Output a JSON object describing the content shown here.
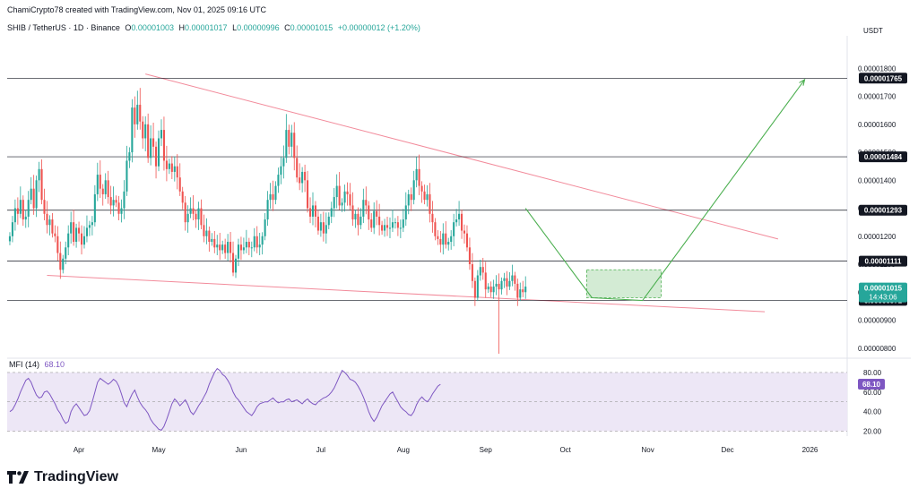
{
  "header": {
    "publisher": "ChamiCrypto78 created with TradingView.com, Nov 01, 2025 09:16 UTC",
    "symbol": "SHIB / TetherUS · 1D · Binance",
    "o_label": "O",
    "o": "0.00001003",
    "h_label": "H",
    "h": "0.00001017",
    "l_label": "L",
    "l": "0.00000996",
    "c_label": "C",
    "c": "0.00001015",
    "change": "+0.00000012 (+1.20%)",
    "currency": "USDT"
  },
  "brand": {
    "name": "TradingView",
    "logo_icon": "tradingview-logo-icon"
  },
  "colors": {
    "up": "#26a69a",
    "down": "#ef5350",
    "trendline": "#f28b9b",
    "projection": "#4caf50",
    "zone": "#a5d6a7",
    "mfi": "#7e57c2",
    "mfi_band": "#ede7f6"
  },
  "chart_data": [
    {
      "type": "candlestick",
      "title": "SHIB / TetherUS · 1D · Binance",
      "ylabel": "USDT",
      "x_start": "2025-03-05",
      "x_end": "2026-01-15",
      "ylim": [
        7.8e-06,
        1.91e-05
      ],
      "ytick_labels": [
        "0.00001800",
        "0.00001700",
        "0.00001600",
        "0.00001500",
        "0.00001400",
        "0.00001300",
        "0.00001200",
        "0.00001100",
        "0.00001000",
        "0.00000900",
        "0.00000800"
      ],
      "ytick_values": [
        1.8e-05,
        1.7e-05,
        1.6e-05,
        1.5e-05,
        1.4e-05,
        1.3e-05,
        1.2e-05,
        1.1e-05,
        1e-05,
        9e-06,
        8e-06
      ],
      "xtick_labels": [
        "Apr",
        "May",
        "Jun",
        "Jul",
        "Aug",
        "Sep",
        "Oct",
        "Nov",
        "Dec",
        "2026"
      ],
      "xtick_dates": [
        "2025-04-01",
        "2025-05-01",
        "2025-06-01",
        "2025-07-01",
        "2025-08-01",
        "2025-09-01",
        "2025-10-01",
        "2025-11-01",
        "2025-12-01",
        "2026-01-01"
      ],
      "horizontal_levels": [
        {
          "value": 1.765e-05,
          "label": "0.00001765"
        },
        {
          "value": 1.484e-05,
          "label": "0.00001484"
        },
        {
          "value": 1.293e-05,
          "label": "0.00001293"
        },
        {
          "value": 1.111e-05,
          "label": "0.00001111"
        },
        {
          "value": 9.71e-06,
          "label": "0.00000971"
        }
      ],
      "last_price": {
        "value": 1.015e-05,
        "label": "0.00001015",
        "countdown": "14:43:06"
      },
      "trendlines": [
        {
          "name": "resistance",
          "from": [
            "2025-04-26",
            1.78e-05
          ],
          "to": [
            "2025-12-20",
            1.19e-05
          ]
        },
        {
          "name": "support",
          "from": [
            "2025-03-20",
            1.06e-05
          ],
          "to": [
            "2025-12-15",
            9.3e-06
          ]
        }
      ],
      "projection": [
        [
          "2025-09-16",
          1.3e-05
        ],
        [
          "2025-10-11",
          9.8e-06
        ],
        [
          "2025-10-30",
          9.7e-06
        ],
        [
          "2025-12-30",
          1.76e-05
        ]
      ],
      "zone": {
        "from": "2025-10-09",
        "to": "2025-11-06",
        "low": 9.8e-06,
        "high": 1.08e-05
      },
      "close": [
        1.2e-05,
        1.25e-05,
        1.3e-05,
        1.28e-05,
        1.33e-05,
        1.26e-05,
        1.27e-05,
        1.33e-05,
        1.37e-05,
        1.3e-05,
        1.4e-05,
        1.44e-05,
        1.33e-05,
        1.28e-05,
        1.24e-05,
        1.26e-05,
        1.21e-05,
        1.2e-05,
        1.14e-05,
        1.08e-05,
        1.12e-05,
        1.16e-05,
        1.21e-05,
        1.25e-05,
        1.18e-05,
        1.23e-05,
        1.21e-05,
        1.17e-05,
        1.2e-05,
        1.23e-05,
        1.24e-05,
        1.25e-05,
        1.35e-05,
        1.42e-05,
        1.37e-05,
        1.35e-05,
        1.4e-05,
        1.34e-05,
        1.31e-05,
        1.33e-05,
        1.32e-05,
        1.28e-05,
        1.3e-05,
        1.36e-05,
        1.47e-05,
        1.5e-05,
        1.66e-05,
        1.6e-05,
        1.67e-05,
        1.61e-05,
        1.55e-05,
        1.6e-05,
        1.48e-05,
        1.55e-05,
        1.52e-05,
        1.45e-05,
        1.55e-05,
        1.58e-05,
        1.47e-05,
        1.44e-05,
        1.46e-05,
        1.43e-05,
        1.45e-05,
        1.41e-05,
        1.36e-05,
        1.32e-05,
        1.25e-05,
        1.28e-05,
        1.3e-05,
        1.28e-05,
        1.26e-05,
        1.3e-05,
        1.24e-05,
        1.2e-05,
        1.22e-05,
        1.18e-05,
        1.19e-05,
        1.16e-05,
        1.17e-05,
        1.15e-05,
        1.17e-05,
        1.14e-05,
        1.18e-05,
        1.14e-05,
        1.07e-05,
        1.12e-05,
        1.17e-05,
        1.15e-05,
        1.16e-05,
        1.18e-05,
        1.16e-05,
        1.16e-05,
        1.2e-05,
        1.16e-05,
        1.17e-05,
        1.2e-05,
        1.26e-05,
        1.33e-05,
        1.35e-05,
        1.33e-05,
        1.38e-05,
        1.42e-05,
        1.45e-05,
        1.48e-05,
        1.58e-05,
        1.52e-05,
        1.57e-05,
        1.48e-05,
        1.41e-05,
        1.39e-05,
        1.43e-05,
        1.4e-05,
        1.3e-05,
        1.27e-05,
        1.31e-05,
        1.27e-05,
        1.22e-05,
        1.25e-05,
        1.21e-05,
        1.24e-05,
        1.27e-05,
        1.3e-05,
        1.34e-05,
        1.38e-05,
        1.31e-05,
        1.32e-05,
        1.36e-05,
        1.35e-05,
        1.31e-05,
        1.26e-05,
        1.28e-05,
        1.24e-05,
        1.27e-05,
        1.33e-05,
        1.31e-05,
        1.26e-05,
        1.23e-05,
        1.29e-05,
        1.27e-05,
        1.24e-05,
        1.22e-05,
        1.24e-05,
        1.23e-05,
        1.23e-05,
        1.25e-05,
        1.25e-05,
        1.23e-05,
        1.23e-05,
        1.26e-05,
        1.31e-05,
        1.35e-05,
        1.33e-05,
        1.4e-05,
        1.44e-05,
        1.38e-05,
        1.36e-05,
        1.33e-05,
        1.35e-05,
        1.28e-05,
        1.25e-05,
        1.2e-05,
        1.19e-05,
        1.17e-05,
        1.21e-05,
        1.17e-05,
        1.18e-05,
        1.2e-05,
        1.25e-05,
        1.26e-05,
        1.28e-05,
        1.22e-05,
        1.21e-05,
        1.16e-05,
        1.1e-05,
        1.04e-05,
        9.8e-06,
        1.06e-05,
        1.09e-05,
        1.07e-05,
        1.01e-05,
        1.02e-05,
        1e-05,
        1.02e-05,
        1.03e-05,
        1.01e-05,
        1.04e-05,
        1.05e-05,
        1.02e-05,
        1.04e-05,
        1.06e-05,
        1.03e-05,
        9.8e-06,
        1.01e-05,
        1e-05,
        1.02e-05
      ]
    },
    {
      "type": "line",
      "title": "MFI (14)",
      "value_label": "68.10",
      "ylim": [
        15,
        90
      ],
      "band": [
        20,
        80
      ],
      "ytick_labels": [
        "80.00",
        "60.00",
        "40.00",
        "20.00"
      ],
      "ytick_values": [
        80,
        60,
        40,
        20
      ],
      "last_value": {
        "value": 68.1,
        "label": "68.10"
      },
      "values": [
        40,
        42,
        47,
        53,
        60,
        66,
        72,
        74,
        70,
        63,
        57,
        54,
        55,
        60,
        61,
        58,
        53,
        48,
        42,
        38,
        32,
        28,
        30,
        40,
        45,
        48,
        44,
        40,
        36,
        37,
        41,
        50,
        60,
        70,
        74,
        72,
        70,
        68,
        70,
        73,
        71,
        66,
        58,
        49,
        45,
        52,
        58,
        62,
        55,
        49,
        45,
        42,
        38,
        32,
        28,
        25,
        22,
        21,
        25,
        32,
        40,
        48,
        53,
        50,
        46,
        49,
        52,
        47,
        40,
        37,
        41,
        46,
        50,
        55,
        60,
        68,
        74,
        80,
        84,
        82,
        78,
        76,
        72,
        67,
        60,
        55,
        52,
        48,
        44,
        40,
        38,
        36,
        40,
        45,
        48,
        49,
        50,
        50,
        52,
        54,
        51,
        49,
        50,
        50,
        52,
        53,
        50,
        51,
        52,
        50,
        48,
        51,
        53,
        50,
        48,
        47,
        50,
        52,
        54,
        55,
        57,
        60,
        64,
        70,
        76,
        82,
        80,
        77,
        73,
        72,
        70,
        66,
        61,
        55,
        48,
        40,
        34,
        30,
        34,
        40,
        46,
        50,
        54,
        58,
        60,
        55,
        50,
        45,
        42,
        40,
        37,
        36,
        40,
        47,
        52,
        55,
        52,
        50,
        53,
        58,
        62,
        66,
        68
      ]
    }
  ]
}
